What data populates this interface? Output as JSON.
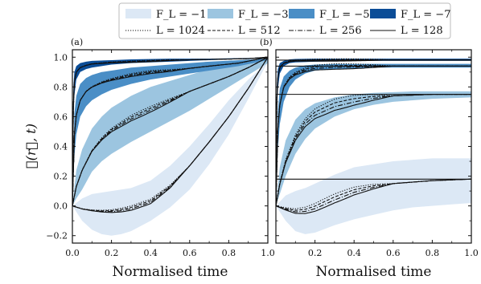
{
  "chart_data": {
    "type": "line",
    "ylabel": "𝒞(r⃗, t)",
    "legend": {
      "placement": "top-center",
      "bands": [
        {
          "label": "F_L = −1",
          "color": "#dce8f5"
        },
        {
          "label": "F_L = −3",
          "color": "#9cc5e0"
        },
        {
          "label": "F_L = −5",
          "color": "#4a8ec6"
        },
        {
          "label": "F_L = −7",
          "color": "#0b4d97"
        }
      ],
      "lines": [
        {
          "label": "L = 1024",
          "dash": "1.2,1.8"
        },
        {
          "label": "L = 512",
          "dash": "4,2"
        },
        {
          "label": "L = 256",
          "dash": "6,2,1.2,2"
        },
        {
          "label": "L = 128",
          "dash": ""
        }
      ]
    },
    "panels": [
      {
        "tag": "(a)",
        "xlabel": "Normalised time",
        "xlim": [
          0,
          1
        ],
        "ylim": [
          -0.25,
          1.05
        ],
        "xticks": [
          0.0,
          0.2,
          0.4,
          0.6,
          0.8,
          1.0
        ],
        "xtick_labels": [
          "0.0",
          "0.2",
          "0.4",
          "0.6",
          "0.8",
          "1.0"
        ],
        "yticks": [
          -0.2,
          0.0,
          0.2,
          0.4,
          0.6,
          0.8,
          1.0
        ],
        "ytick_labels": [
          "−0.2",
          "0.0",
          "0.2",
          "0.4",
          "0.6",
          "0.8",
          "1.0"
        ],
        "groups": [
          {
            "field": "F_L = −1",
            "x": [
              0,
              0.05,
              0.1,
              0.15,
              0.2,
              0.25,
              0.3,
              0.4,
              0.5,
              0.6,
              0.7,
              0.8,
              0.9,
              1.0
            ],
            "lower": [
              0,
              -0.1,
              -0.16,
              -0.19,
              -0.2,
              -0.19,
              -0.17,
              -0.1,
              -0.01,
              0.11,
              0.28,
              0.48,
              0.72,
              0.97
            ],
            "upper": [
              0,
              0.05,
              0.08,
              0.09,
              0.1,
              0.11,
              0.12,
              0.17,
              0.27,
              0.4,
              0.55,
              0.71,
              0.85,
              0.97
            ],
            "mean": [
              0,
              -0.02,
              -0.03,
              -0.035,
              -0.035,
              -0.028,
              -0.015,
              0.03,
              0.13,
              0.27,
              0.43,
              0.6,
              0.79,
              1.0
            ],
            "spread": 0.012
          },
          {
            "field": "F_L = −3",
            "x": [
              0,
              0.02,
              0.05,
              0.1,
              0.15,
              0.2,
              0.3,
              0.4,
              0.5,
              0.6,
              0.7,
              0.8,
              0.9,
              1.0
            ],
            "lower": [
              0,
              0.05,
              0.11,
              0.23,
              0.3,
              0.35,
              0.43,
              0.5,
              0.57,
              0.64,
              0.72,
              0.8,
              0.88,
              0.96
            ],
            "upper": [
              0,
              0.24,
              0.38,
              0.52,
              0.6,
              0.66,
              0.74,
              0.8,
              0.84,
              0.88,
              0.92,
              0.95,
              0.97,
              0.99
            ],
            "mean": [
              0,
              0.13,
              0.24,
              0.37,
              0.45,
              0.51,
              0.59,
              0.65,
              0.71,
              0.77,
              0.82,
              0.87,
              0.93,
              1.0
            ],
            "spread": 0.015
          },
          {
            "field": "F_L = −5",
            "x": [
              0,
              0.01,
              0.02,
              0.04,
              0.07,
              0.1,
              0.15,
              0.2,
              0.3,
              0.4,
              0.5,
              0.7,
              0.85,
              1.0
            ],
            "lower": [
              0,
              0.33,
              0.48,
              0.6,
              0.67,
              0.71,
              0.75,
              0.78,
              0.82,
              0.85,
              0.87,
              0.91,
              0.94,
              0.98
            ],
            "upper": [
              0,
              0.62,
              0.74,
              0.82,
              0.86,
              0.88,
              0.9,
              0.91,
              0.93,
              0.94,
              0.95,
              0.97,
              0.98,
              0.99
            ],
            "mean": [
              0,
              0.47,
              0.61,
              0.71,
              0.77,
              0.8,
              0.83,
              0.85,
              0.88,
              0.9,
              0.91,
              0.94,
              0.96,
              1.0
            ],
            "spread": 0.008
          },
          {
            "field": "F_L = −7",
            "x": [
              0,
              0.005,
              0.01,
              0.02,
              0.04,
              0.07,
              0.1,
              0.2,
              0.3,
              0.5,
              0.7,
              0.9,
              1.0
            ],
            "lower": [
              0,
              0.55,
              0.74,
              0.85,
              0.9,
              0.92,
              0.93,
              0.95,
              0.96,
              0.97,
              0.98,
              0.99,
              0.99
            ],
            "upper": [
              0,
              0.8,
              0.9,
              0.94,
              0.96,
              0.97,
              0.975,
              0.98,
              0.985,
              0.99,
              0.99,
              0.995,
              1.0
            ],
            "mean": [
              0,
              0.68,
              0.83,
              0.9,
              0.93,
              0.945,
              0.955,
              0.965,
              0.97,
              0.98,
              0.985,
              0.99,
              1.0
            ],
            "spread": 0.004
          }
        ]
      },
      {
        "tag": "(b)",
        "xlabel": "Normalised time",
        "xlim": [
          0,
          1
        ],
        "ylim": [
          -0.25,
          1.05
        ],
        "xticks": [
          0.2,
          0.4,
          0.6,
          0.8,
          1.0
        ],
        "xtick_labels": [
          "0.2",
          "0.4",
          "0.6",
          "0.8",
          "1.0"
        ],
        "yticks": [
          -0.2,
          0.0,
          0.2,
          0.4,
          0.6,
          0.8,
          1.0
        ],
        "ytick_labels": [],
        "hlines": [
          0.98,
          0.94,
          0.75,
          0.18
        ],
        "groups": [
          {
            "field": "F_L = −1",
            "x": [
              0,
              0.05,
              0.1,
              0.15,
              0.2,
              0.3,
              0.4,
              0.5,
              0.6,
              0.7,
              0.8,
              0.9,
              1.0
            ],
            "lower": [
              0,
              -0.1,
              -0.17,
              -0.19,
              -0.18,
              -0.13,
              -0.09,
              -0.06,
              -0.03,
              -0.01,
              0.0,
              0.01,
              0.02
            ],
            "upper": [
              0,
              0.07,
              0.1,
              0.12,
              0.15,
              0.21,
              0.26,
              0.28,
              0.3,
              0.31,
              0.32,
              0.32,
              0.32
            ],
            "mean": [
              0,
              -0.02,
              -0.035,
              -0.03,
              -0.01,
              0.05,
              0.1,
              0.13,
              0.15,
              0.16,
              0.17,
              0.175,
              0.18
            ],
            "spread": 0.02
          },
          {
            "field": "F_L = −3",
            "x": [
              0,
              0.02,
              0.05,
              0.1,
              0.15,
              0.2,
              0.3,
              0.4,
              0.5,
              0.6,
              0.7,
              0.8,
              1.0
            ],
            "lower": [
              0,
              0.08,
              0.2,
              0.35,
              0.45,
              0.52,
              0.6,
              0.65,
              0.68,
              0.7,
              0.71,
              0.72,
              0.73
            ],
            "upper": [
              0,
              0.26,
              0.44,
              0.58,
              0.65,
              0.69,
              0.73,
              0.75,
              0.76,
              0.765,
              0.77,
              0.77,
              0.77
            ],
            "mean": [
              0,
              0.15,
              0.3,
              0.46,
              0.56,
              0.62,
              0.68,
              0.71,
              0.73,
              0.74,
              0.745,
              0.75,
              0.75
            ],
            "spread": 0.025
          },
          {
            "field": "F_L = −5",
            "x": [
              0,
              0.01,
              0.02,
              0.04,
              0.07,
              0.1,
              0.15,
              0.2,
              0.3,
              0.5,
              0.7,
              1.0
            ],
            "lower": [
              0,
              0.38,
              0.55,
              0.7,
              0.8,
              0.85,
              0.89,
              0.91,
              0.92,
              0.93,
              0.93,
              0.93
            ],
            "upper": [
              0,
              0.64,
              0.79,
              0.87,
              0.91,
              0.93,
              0.945,
              0.95,
              0.955,
              0.955,
              0.955,
              0.955
            ],
            "mean": [
              0,
              0.52,
              0.68,
              0.8,
              0.86,
              0.89,
              0.915,
              0.93,
              0.937,
              0.94,
              0.94,
              0.94
            ],
            "spread": 0.012
          },
          {
            "field": "F_L = −7",
            "x": [
              0,
              0.005,
              0.01,
              0.02,
              0.04,
              0.07,
              0.1,
              0.2,
              0.4,
              0.7,
              1.0
            ],
            "lower": [
              0,
              0.6,
              0.78,
              0.89,
              0.94,
              0.96,
              0.965,
              0.97,
              0.975,
              0.975,
              0.975
            ],
            "upper": [
              0,
              0.82,
              0.92,
              0.96,
              0.975,
              0.985,
              0.988,
              0.99,
              0.99,
              0.99,
              0.99
            ],
            "mean": [
              0,
              0.72,
              0.86,
              0.93,
              0.96,
              0.972,
              0.977,
              0.98,
              0.982,
              0.982,
              0.982
            ],
            "spread": 0.005
          }
        ]
      }
    ]
  }
}
